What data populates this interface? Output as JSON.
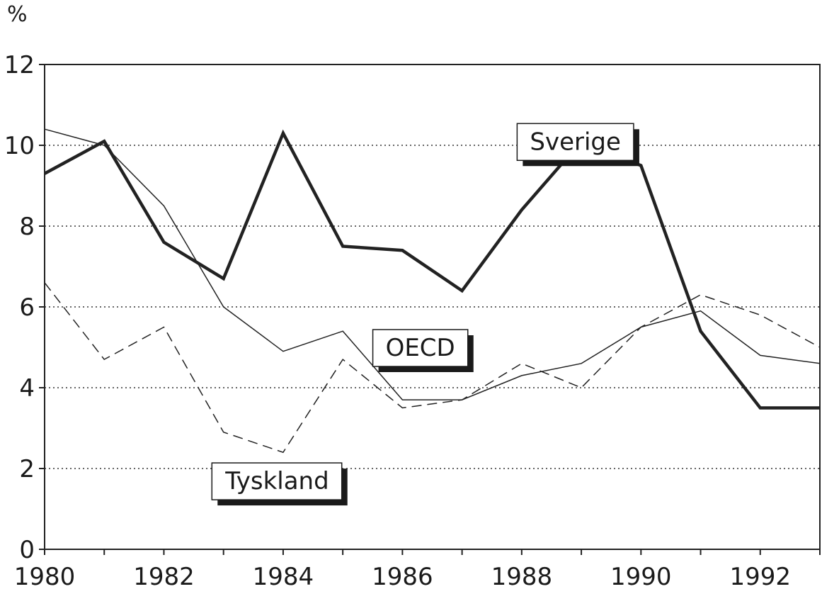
{
  "chart_data": {
    "type": "line",
    "unit": "%",
    "x": [
      1980,
      1981,
      1982,
      1983,
      1984,
      1985,
      1986,
      1987,
      1988,
      1989,
      1990,
      1991,
      1992,
      1993
    ],
    "x_tick_labels": [
      "1980",
      "1982",
      "1984",
      "1986",
      "1988",
      "1990",
      "1992"
    ],
    "y_tick_labels": [
      "0",
      "2",
      "4",
      "6",
      "8",
      "10",
      "12"
    ],
    "xlim": [
      1980,
      1993
    ],
    "ylim": [
      0,
      12
    ],
    "grid": "horizontal-dotted",
    "series": [
      {
        "name": "Sverige",
        "style": "thick-solid",
        "color": "#222222",
        "label_anchor": [
          1988.9,
          10.1
        ],
        "values": [
          9.3,
          10.1,
          7.6,
          6.7,
          10.3,
          7.5,
          7.4,
          6.4,
          8.4,
          10.1,
          9.5,
          5.4,
          3.5,
          3.5
        ]
      },
      {
        "name": "OECD",
        "style": "thin-solid",
        "color": "#222222",
        "label_anchor": [
          1986.3,
          5.0
        ],
        "values": [
          10.4,
          10.0,
          8.5,
          6.0,
          4.9,
          5.4,
          3.7,
          3.7,
          4.3,
          4.6,
          5.5,
          5.9,
          4.8,
          4.6
        ]
      },
      {
        "name": "Tyskland",
        "style": "dashed",
        "color": "#222222",
        "label_anchor": [
          1983.9,
          1.7
        ],
        "values": [
          6.6,
          4.7,
          5.5,
          2.9,
          2.4,
          4.7,
          3.5,
          3.7,
          4.6,
          4.0,
          5.5,
          6.3,
          5.8,
          5.0
        ]
      }
    ]
  }
}
